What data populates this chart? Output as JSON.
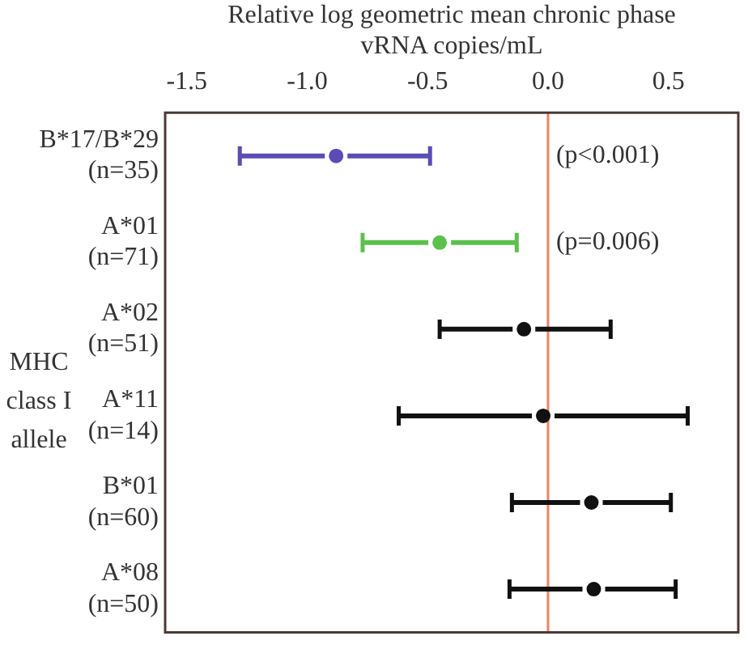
{
  "chart_data": {
    "type": "scatter",
    "orientation": "horizontal",
    "xlabel": "Relative log geometric mean chronic phase\nvRNA copies/mL",
    "ylabel": "MHC\nclass I\nallele",
    "categories": [
      "B*17/B*29\n(n=35)",
      "A*01\n(n=71)",
      "A*02\n(n=51)",
      "A*11\n(n=14)",
      "B*01\n(n=60)",
      "A*08\n(n=50)"
    ],
    "values": [
      -0.88,
      -0.45,
      -0.1,
      -0.02,
      0.18,
      0.19
    ],
    "errors": [
      [
        -1.28,
        -0.49
      ],
      [
        -0.77,
        -0.13
      ],
      [
        -0.45,
        0.26
      ],
      [
        -0.62,
        0.58
      ],
      [
        -0.15,
        0.51
      ],
      [
        -0.16,
        0.53
      ]
    ],
    "colors": [
      "#5b4bb5",
      "#5cc04d",
      "#111111",
      "#111111",
      "#111111",
      "#111111"
    ],
    "xlim": [
      -1.59,
      0.79
    ],
    "xticks": [
      {
        "value": -1.5,
        "label": "-1.5"
      },
      {
        "value": -1,
        "label": "-1.0"
      },
      {
        "value": -0.5,
        "label": "-0.5"
      },
      {
        "value": 0,
        "label": "0.0"
      },
      {
        "value": 0.5,
        "label": "0.5"
      }
    ],
    "ref_lines": [
      {
        "axis": "x",
        "value": 0,
        "color": "#f08060"
      }
    ],
    "annotations": [
      {
        "text": "(p<0.001)",
        "x": 0.02,
        "y": "B*17/B*29\n(n=35)"
      },
      {
        "text": "(p=0.006)",
        "x": 0.02,
        "y": "A*01\n(n=71)"
      }
    ],
    "marker": "circle",
    "grid": false,
    "legend": false
  }
}
